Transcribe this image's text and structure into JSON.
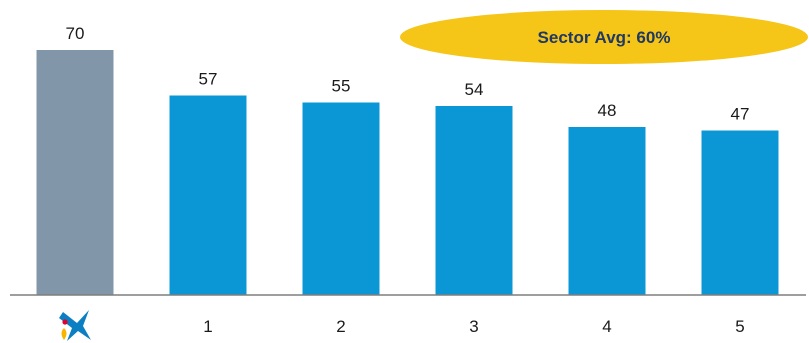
{
  "chart_data": {
    "type": "bar",
    "categories": [
      "logo",
      "1",
      "2",
      "3",
      "4",
      "5"
    ],
    "values": [
      70,
      57,
      55,
      54,
      48,
      47
    ],
    "data_labels": [
      "70",
      "57",
      "55",
      "54",
      "48",
      "47"
    ],
    "ylim": [
      0,
      75
    ],
    "grid": false,
    "legend": "none",
    "title": "",
    "xlabel": "",
    "ylabel": "",
    "first_category_icon": "caixabank-star-logo-icon",
    "colors": {
      "highlight_bar": "#8197a9",
      "bar": "#0b97d6",
      "axis": "#7f7f7f",
      "badge_fill": "#f5c518",
      "badge_text": "#1f3864",
      "logo_blue": "#0b7fc2",
      "logo_red": "#e4002b",
      "logo_yellow": "#f7b500"
    }
  },
  "annotation": {
    "text": "Sector Avg: 60%"
  }
}
